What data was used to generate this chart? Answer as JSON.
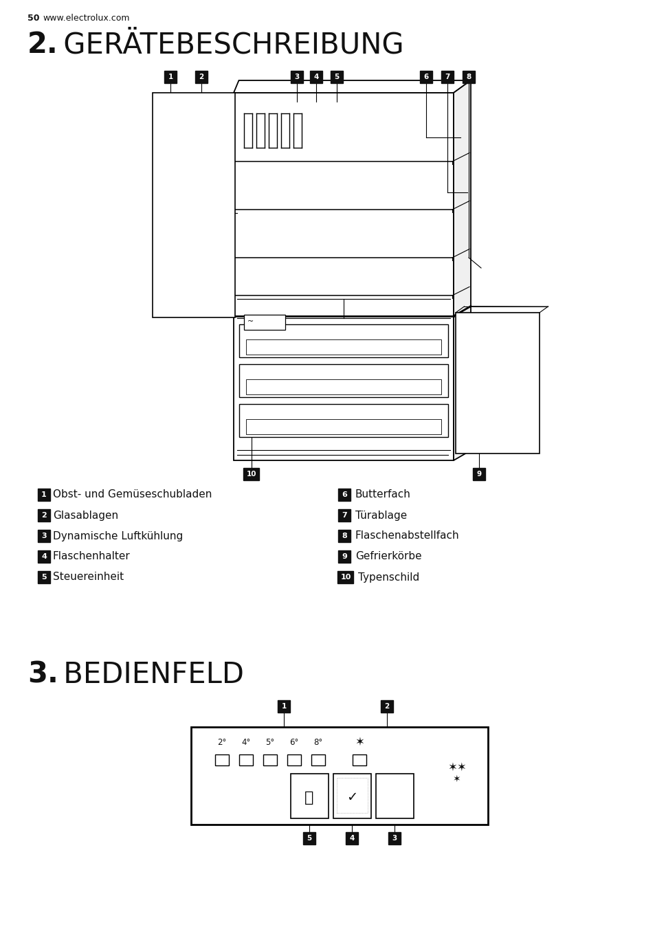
{
  "page_number": "50",
  "website": "www.electrolux.com",
  "section2_bold": "2.",
  "section2_title": " GERÄTEBESCHREIBUNG",
  "section3_bold": "3.",
  "section3_title": " BEDIENFELD",
  "legend_left": [
    {
      "num": "1",
      "text": "Obst- und Gemüseschubladen"
    },
    {
      "num": "2",
      "text": "Glasablagen"
    },
    {
      "num": "3",
      "text": "Dynamische Luftkühlung"
    },
    {
      "num": "4",
      "text": "Flaschenhalter"
    },
    {
      "num": "5",
      "text": "Steuereinheit"
    }
  ],
  "legend_right": [
    {
      "num": "6",
      "text": "Butterfach"
    },
    {
      "num": "7",
      "text": "Türablage"
    },
    {
      "num": "8",
      "text": "Flaschenabstellfach"
    },
    {
      "num": "9",
      "text": "Gefrierkörbe"
    },
    {
      "num": "10",
      "text": "Typenschild"
    }
  ],
  "bg_color": "#ffffff",
  "label_bg": "#111111",
  "label_fg": "#ffffff",
  "text_color": "#111111"
}
